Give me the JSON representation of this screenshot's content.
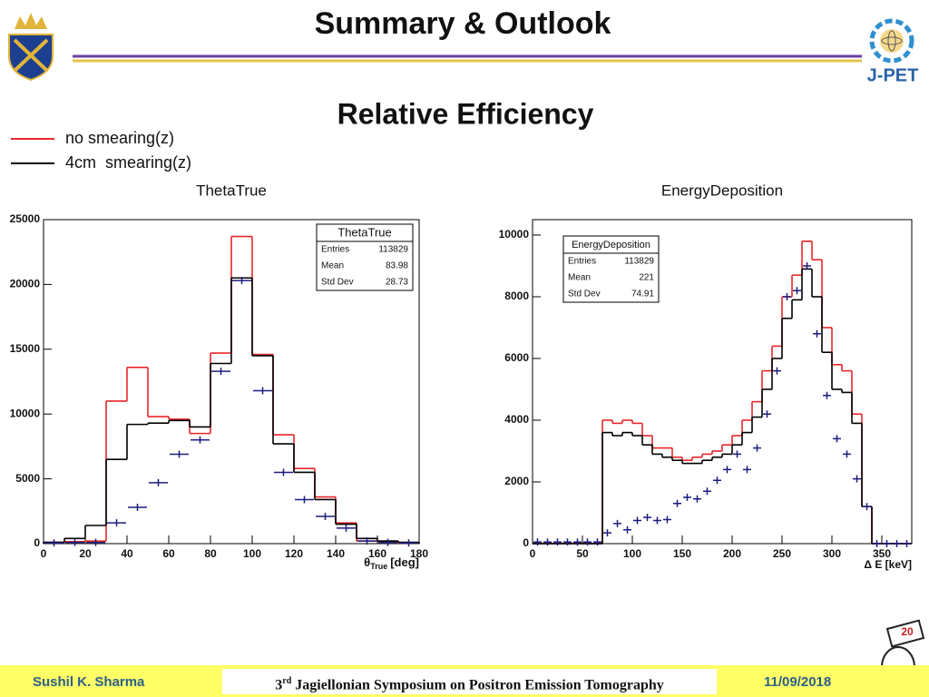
{
  "header": {
    "title": "Summary & Outlook",
    "subtitle": "Relative Efficiency",
    "logo_text": "J-PET"
  },
  "footer": {
    "author": "Sushil K. Sharma",
    "event_ordinal": "3",
    "event_suffix": "rd",
    "event_name": "Jagiellonian Symposium on Positron Emission Tomography",
    "date": "11/09/2018"
  },
  "chart_data": [
    {
      "type": "histogram",
      "title": "ThetaTrue",
      "xlabel": {
        "symbol": "θ",
        "sub": "True",
        "unit": "[deg]"
      },
      "bins": [
        0,
        10,
        20,
        30,
        40,
        50,
        60,
        70,
        80,
        90,
        100,
        110,
        120,
        130,
        140,
        150,
        160,
        170,
        180
      ],
      "series": [
        {
          "name": "no smearing(z)",
          "color": "#e8262a",
          "style": "step",
          "values": [
            100,
            150,
            200,
            11000,
            13600,
            9800,
            9600,
            8500,
            14700,
            23700,
            14600,
            8400,
            5800,
            3600,
            1600,
            200,
            200,
            50
          ]
        },
        {
          "name": "4cm  smearing(z)",
          "color": "#000000",
          "style": "step",
          "values": [
            100,
            400,
            1400,
            6500,
            9200,
            9300,
            9500,
            9000,
            13900,
            20500,
            14500,
            7700,
            5500,
            3400,
            1500,
            400,
            200,
            100
          ]
        },
        {
          "color": "#1c1c80",
          "style": "points",
          "values": [
            50,
            100,
            100,
            1600,
            2800,
            4700,
            6900,
            8000,
            13300,
            20300,
            11800,
            5500,
            3400,
            2100,
            1200,
            200,
            100,
            50
          ]
        }
      ],
      "xlim": [
        0,
        180
      ],
      "xticks": [
        0,
        20,
        40,
        60,
        80,
        100,
        120,
        140,
        160,
        180
      ],
      "ylim": [
        0,
        25000
      ],
      "yticks": [
        0,
        5000,
        10000,
        15000,
        20000,
        25000
      ],
      "stats": {
        "title": "ThetaTrue",
        "rows": [
          {
            "label": "Entries",
            "value": 113829
          },
          {
            "label": "Mean",
            "value": 83.98
          },
          {
            "label": "Std Dev",
            "value": 28.73
          }
        ]
      }
    },
    {
      "type": "histogram",
      "title": "EnergyDeposition",
      "xlabel": "Δ E [keV]",
      "bins": [
        0,
        10,
        20,
        30,
        40,
        50,
        60,
        70,
        80,
        90,
        100,
        110,
        120,
        130,
        140,
        150,
        160,
        170,
        180,
        190,
        200,
        210,
        220,
        230,
        240,
        250,
        260,
        270,
        280,
        290,
        300,
        310,
        320,
        330,
        340,
        350,
        360,
        370,
        380
      ],
      "series": [
        {
          "color": "#e8262a",
          "style": "step",
          "values": [
            0,
            0,
            0,
            0,
            0,
            0,
            0,
            4000,
            3900,
            4000,
            3900,
            3500,
            3100,
            3100,
            2800,
            2700,
            2800,
            2900,
            3000,
            3200,
            3500,
            4000,
            4600,
            5600,
            6400,
            8000,
            8700,
            9800,
            9200,
            7000,
            5800,
            5600,
            4200,
            1200,
            0,
            0,
            0,
            0
          ]
        },
        {
          "color": "#000000",
          "style": "step",
          "values": [
            0,
            0,
            0,
            0,
            0,
            0,
            0,
            3600,
            3500,
            3600,
            3500,
            3200,
            2900,
            2800,
            2700,
            2600,
            2600,
            2700,
            2800,
            2900,
            3200,
            3600,
            4100,
            5000,
            6000,
            7300,
            7900,
            8900,
            8000,
            6200,
            5000,
            4900,
            3900,
            1200,
            0,
            0,
            0,
            0
          ]
        },
        {
          "color": "#1c1c80",
          "style": "points",
          "values": [
            50,
            50,
            50,
            50,
            50,
            50,
            50,
            350,
            650,
            450,
            750,
            850,
            750,
            780,
            1300,
            1500,
            1450,
            1700,
            2050,
            2400,
            2900,
            2400,
            3100,
            4200,
            5600,
            8000,
            8200,
            9000,
            6800,
            4800,
            3400,
            2900,
            2100,
            1200,
            0,
            0,
            0,
            0
          ]
        }
      ],
      "xlim": [
        0,
        380
      ],
      "xticks": [
        0,
        50,
        100,
        150,
        200,
        250,
        300,
        350
      ],
      "ylim": [
        0,
        10500
      ],
      "yticks": [
        0,
        2000,
        4000,
        6000,
        8000,
        10000
      ],
      "stats": {
        "title": "EnergyDeposition",
        "rows": [
          {
            "label": "Entries",
            "value": 113829
          },
          {
            "label": "Mean",
            "value": 221
          },
          {
            "label": "Std Dev",
            "value": 74.91
          }
        ]
      }
    }
  ]
}
